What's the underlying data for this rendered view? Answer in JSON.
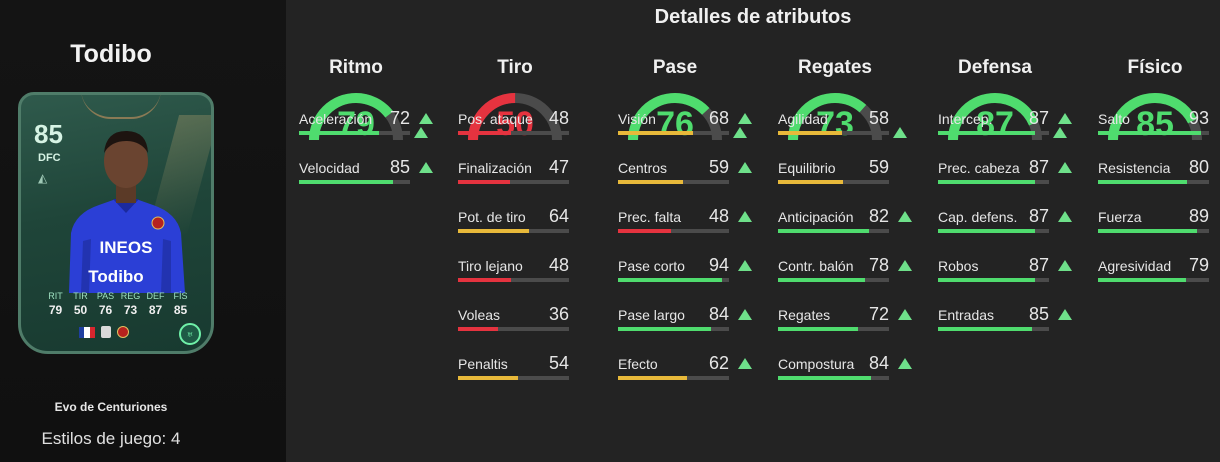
{
  "colors": {
    "green": "#4fdc6e",
    "yellow": "#e8b93a",
    "red": "#e5333f",
    "track": "#4b4b4b",
    "arrow": "#6ee08a"
  },
  "player": {
    "name": "Todibo",
    "evolution": "Evo de Centuriones",
    "playstyles": "Estilos de juego: 4"
  },
  "card": {
    "rating": "85",
    "position": "DFC",
    "name": "Todibo",
    "stats": [
      {
        "label": "RIT",
        "value": "79"
      },
      {
        "label": "TIR",
        "value": "50"
      },
      {
        "label": "PAS",
        "value": "76"
      },
      {
        "label": "REG",
        "value": "73"
      },
      {
        "label": "DEF",
        "value": "87"
      },
      {
        "label": "FÍS",
        "value": "85"
      }
    ],
    "nation_icon": "france-flag-icon",
    "club_icon": "nice-crest-icon",
    "evo_icon": "evolution-icon"
  },
  "title": "Detalles de atributos",
  "categories": [
    {
      "name": "Ritmo",
      "value": 79,
      "color": "#4fdc6e",
      "improved": true,
      "stats": [
        {
          "label": "Aceleración",
          "value": 72,
          "color": "#4fdc6e",
          "up": true
        },
        {
          "label": "Velocidad",
          "value": 85,
          "color": "#4fdc6e",
          "up": true
        }
      ]
    },
    {
      "name": "Tiro",
      "value": 50,
      "color": "#e5333f",
      "improved": false,
      "stats": [
        {
          "label": "Pos. ataque",
          "value": 48,
          "color": "#e5333f",
          "up": false
        },
        {
          "label": "Finalización",
          "value": 47,
          "color": "#e5333f",
          "up": false
        },
        {
          "label": "Pot. de tiro",
          "value": 64,
          "color": "#e8b93a",
          "up": false
        },
        {
          "label": "Tiro lejano",
          "value": 48,
          "color": "#e5333f",
          "up": false
        },
        {
          "label": "Voleas",
          "value": 36,
          "color": "#e5333f",
          "up": false
        },
        {
          "label": "Penaltis",
          "value": 54,
          "color": "#e8b93a",
          "up": false
        }
      ]
    },
    {
      "name": "Pase",
      "value": 76,
      "color": "#4fdc6e",
      "improved": true,
      "stats": [
        {
          "label": "Visión",
          "value": 68,
          "color": "#e8b93a",
          "up": true
        },
        {
          "label": "Centros",
          "value": 59,
          "color": "#e8b93a",
          "up": true
        },
        {
          "label": "Prec. falta",
          "value": 48,
          "color": "#e5333f",
          "up": true
        },
        {
          "label": "Pase corto",
          "value": 94,
          "color": "#4fdc6e",
          "up": true
        },
        {
          "label": "Pase largo",
          "value": 84,
          "color": "#4fdc6e",
          "up": true
        },
        {
          "label": "Efecto",
          "value": 62,
          "color": "#e8b93a",
          "up": true
        }
      ]
    },
    {
      "name": "Regates",
      "value": 73,
      "color": "#4fdc6e",
      "improved": true,
      "stats": [
        {
          "label": "Agilidad",
          "value": 58,
          "color": "#e8b93a",
          "up": false
        },
        {
          "label": "Equilibrio",
          "value": 59,
          "color": "#e8b93a",
          "up": false
        },
        {
          "label": "Anticipación",
          "value": 82,
          "color": "#4fdc6e",
          "up": true
        },
        {
          "label": "Contr. balón",
          "value": 78,
          "color": "#4fdc6e",
          "up": true
        },
        {
          "label": "Regates",
          "value": 72,
          "color": "#4fdc6e",
          "up": true
        },
        {
          "label": "Compostura",
          "value": 84,
          "color": "#4fdc6e",
          "up": true
        }
      ]
    },
    {
      "name": "Defensa",
      "value": 87,
      "color": "#4fdc6e",
      "improved": true,
      "stats": [
        {
          "label": "Intercep.",
          "value": 87,
          "color": "#4fdc6e",
          "up": true
        },
        {
          "label": "Prec. cabeza",
          "value": 87,
          "color": "#4fdc6e",
          "up": true
        },
        {
          "label": "Cap. defens.",
          "value": 87,
          "color": "#4fdc6e",
          "up": true
        },
        {
          "label": "Robos",
          "value": 87,
          "color": "#4fdc6e",
          "up": true
        },
        {
          "label": "Entradas",
          "value": 85,
          "color": "#4fdc6e",
          "up": true
        }
      ]
    },
    {
      "name": "Físico",
      "value": 85,
      "color": "#4fdc6e",
      "improved": false,
      "stats": [
        {
          "label": "Salto",
          "value": 93,
          "color": "#4fdc6e",
          "up": false
        },
        {
          "label": "Resistencia",
          "value": 80,
          "color": "#4fdc6e",
          "up": false
        },
        {
          "label": "Fuerza",
          "value": 89,
          "color": "#4fdc6e",
          "up": false
        },
        {
          "label": "Agresividad",
          "value": 79,
          "color": "#4fdc6e",
          "up": false
        }
      ]
    }
  ]
}
